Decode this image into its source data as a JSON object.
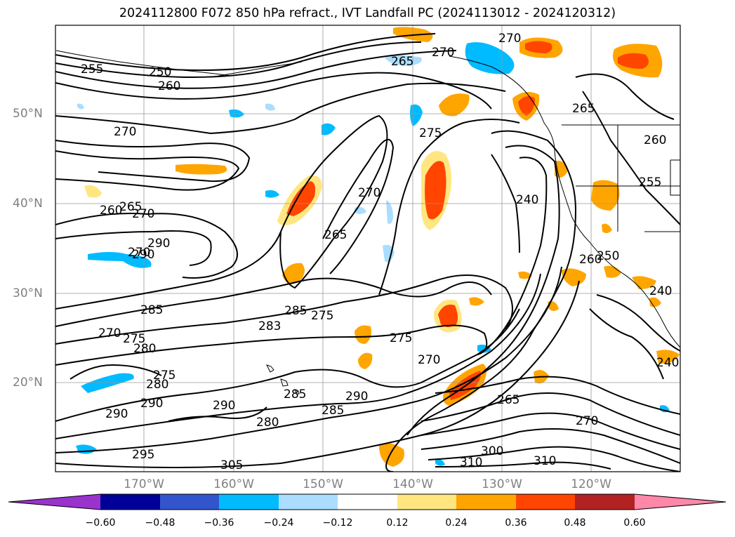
{
  "title": "2024112800 F072 850 hPa refract., IVT Landfall PC (2024113012 - 2024120312)",
  "lat_labels": [
    "50°N",
    "40°N",
    "30°N",
    "20°N"
  ],
  "lon_labels": [
    "170°W",
    "160°W",
    "150°W",
    "140°W",
    "130°W",
    "120°W"
  ],
  "contour_labels": [
    "255",
    "250",
    "260",
    "265",
    "270",
    "270",
    "275",
    "270",
    "265",
    "260",
    "265",
    "270",
    "260",
    "270",
    "265",
    "255",
    "240",
    "260",
    "270",
    "290",
    "290",
    "285",
    "283",
    "285",
    "275",
    "275",
    "270",
    "270",
    "275",
    "280",
    "275",
    "280",
    "290",
    "290",
    "290",
    "285",
    "280",
    "285",
    "290",
    "265",
    "270",
    "295",
    "305",
    "310",
    "300",
    "310",
    "240",
    "240",
    "250"
  ],
  "colorbar": {
    "ticks": [
      "−0.60",
      "−0.48",
      "−0.36",
      "−0.24",
      "−0.12",
      "0.12",
      "0.24",
      "0.36",
      "0.48",
      "0.60"
    ],
    "colors": [
      "#9933cc",
      "#000099",
      "#3355cc",
      "#00bbff",
      "#aaddff",
      "#ffffff",
      "#ffe680",
      "#ffa500",
      "#ff4500",
      "#b22222",
      "#ff88aa"
    ]
  }
}
